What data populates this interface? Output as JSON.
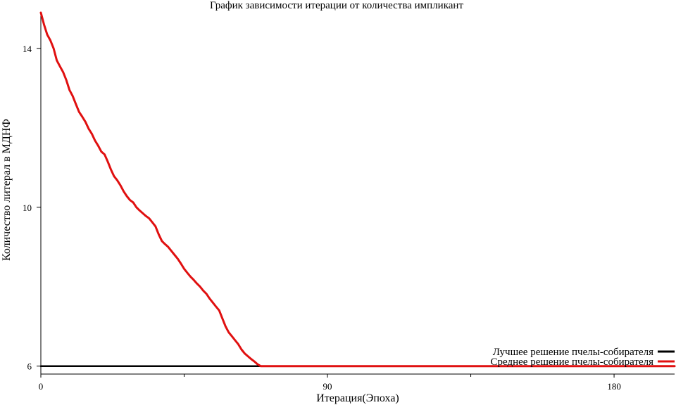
{
  "chart_data": {
    "type": "line",
    "title": "График зависимости итерации от количества импликант",
    "xlabel": "Итерация(Эпоха)",
    "ylabel": "Количество литерал в МДНФ",
    "xlim": [
      0,
      199
    ],
    "ylim": [
      5.8,
      14.9
    ],
    "x_ticks": [
      0,
      90,
      180
    ],
    "x_minor_ticks": [
      45,
      135
    ],
    "y_ticks": [
      6,
      10,
      14
    ],
    "grid": false,
    "legend_position": "bottom-right",
    "series": [
      {
        "name": "Лучшее решение пчелы-собирателя",
        "color": "#000000",
        "points": [
          [
            0,
            6
          ],
          [
            199,
            6
          ]
        ]
      },
      {
        "name": "Среднее решение пчелы-собирателя",
        "color": "#e01010",
        "points": [
          [
            0,
            14.9
          ],
          [
            1,
            14.6
          ],
          [
            2,
            14.35
          ],
          [
            3,
            14.2
          ],
          [
            4,
            14.0
          ],
          [
            5,
            13.7
          ],
          [
            6,
            13.55
          ],
          [
            7,
            13.4
          ],
          [
            8,
            13.2
          ],
          [
            9,
            12.95
          ],
          [
            10,
            12.8
          ],
          [
            11,
            12.6
          ],
          [
            12,
            12.4
          ],
          [
            13,
            12.28
          ],
          [
            14,
            12.15
          ],
          [
            15,
            11.98
          ],
          [
            16,
            11.85
          ],
          [
            17,
            11.68
          ],
          [
            18,
            11.55
          ],
          [
            19,
            11.4
          ],
          [
            20,
            11.33
          ],
          [
            21,
            11.15
          ],
          [
            22,
            10.95
          ],
          [
            23,
            10.78
          ],
          [
            24,
            10.68
          ],
          [
            25,
            10.55
          ],
          [
            26,
            10.4
          ],
          [
            27,
            10.28
          ],
          [
            28,
            10.18
          ],
          [
            29,
            10.12
          ],
          [
            30,
            10.0
          ],
          [
            31,
            9.92
          ],
          [
            32,
            9.85
          ],
          [
            33,
            9.78
          ],
          [
            34,
            9.72
          ],
          [
            35,
            9.62
          ],
          [
            36,
            9.52
          ],
          [
            37,
            9.32
          ],
          [
            38,
            9.15
          ],
          [
            39,
            9.07
          ],
          [
            40,
            9.0
          ],
          [
            41,
            8.9
          ],
          [
            42,
            8.8
          ],
          [
            43,
            8.7
          ],
          [
            44,
            8.58
          ],
          [
            45,
            8.45
          ],
          [
            46,
            8.35
          ],
          [
            47,
            8.25
          ],
          [
            48,
            8.17
          ],
          [
            49,
            8.08
          ],
          [
            50,
            8.0
          ],
          [
            51,
            7.9
          ],
          [
            52,
            7.82
          ],
          [
            53,
            7.7
          ],
          [
            54,
            7.6
          ],
          [
            55,
            7.5
          ],
          [
            56,
            7.4
          ],
          [
            57,
            7.2
          ],
          [
            58,
            7.0
          ],
          [
            59,
            6.85
          ],
          [
            60,
            6.75
          ],
          [
            61,
            6.65
          ],
          [
            62,
            6.55
          ],
          [
            63,
            6.42
          ],
          [
            64,
            6.32
          ],
          [
            65,
            6.25
          ],
          [
            66,
            6.18
          ],
          [
            67,
            6.12
          ],
          [
            68,
            6.05
          ],
          [
            69,
            6.0
          ],
          [
            199,
            6.0
          ]
        ]
      }
    ]
  }
}
